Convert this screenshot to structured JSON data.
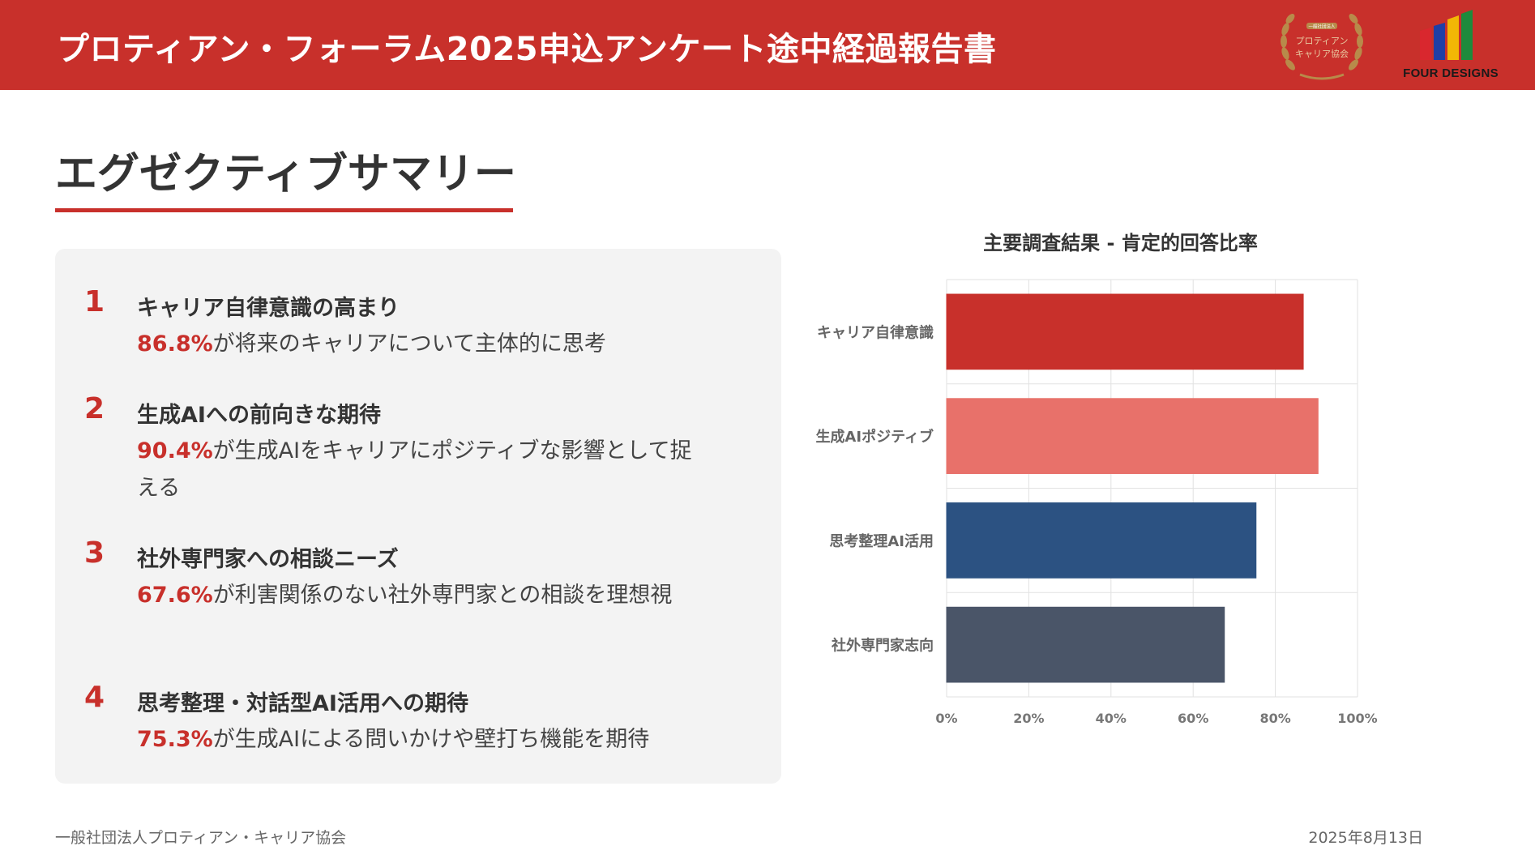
{
  "header": {
    "title": "プロティアン・フォーラム2025申込アンケート途中経過報告書",
    "seal_text": [
      "一般社団法人",
      "プロティアン",
      "キャリア協会"
    ],
    "brand_name": "FOUR DESIGNS",
    "background_color": "#c8302b"
  },
  "section": {
    "title": "エグゼクティブサマリー"
  },
  "findings": [
    {
      "number": "1",
      "title": "キャリア自律意識の高まり",
      "percent": "86.8%",
      "description": "が将来のキャリアについて主体的に思考"
    },
    {
      "number": "2",
      "title": "生成AIへの前向きな期待",
      "percent": "90.4%",
      "description": "が生成AIをキャリアにポジティブな影響として捉える"
    },
    {
      "number": "3",
      "title": "社外専門家への相談ニーズ",
      "percent": "67.6%",
      "description": "が利害関係のない社外専門家との相談を理想視"
    },
    {
      "number": "4",
      "title": "思考整理・対話型AI活用への期待",
      "percent": "75.3%",
      "description": "が生成AIによる問いかけや壁打ち機能を期待"
    }
  ],
  "chart_data": {
    "type": "bar",
    "orientation": "horizontal",
    "title": "主要調査結果 - 肯定的回答比率",
    "categories": [
      "キャリア自律意識",
      "生成AIポジティブ",
      "思考整理AI活用",
      "社外専門家志向"
    ],
    "values": [
      86.8,
      90.4,
      75.3,
      67.6
    ],
    "colors": [
      "#c8302b",
      "#e8716a",
      "#2c5282",
      "#4a5568"
    ],
    "xlim": [
      0,
      100
    ],
    "xticks": [
      "0%",
      "20%",
      "40%",
      "60%",
      "80%",
      "100%"
    ],
    "xlabel": "",
    "ylabel": "",
    "grid": true,
    "legend": "none"
  },
  "footer": {
    "organization": "一般社団法人プロティアン・キャリア協会",
    "date": "2025年8月13日"
  }
}
